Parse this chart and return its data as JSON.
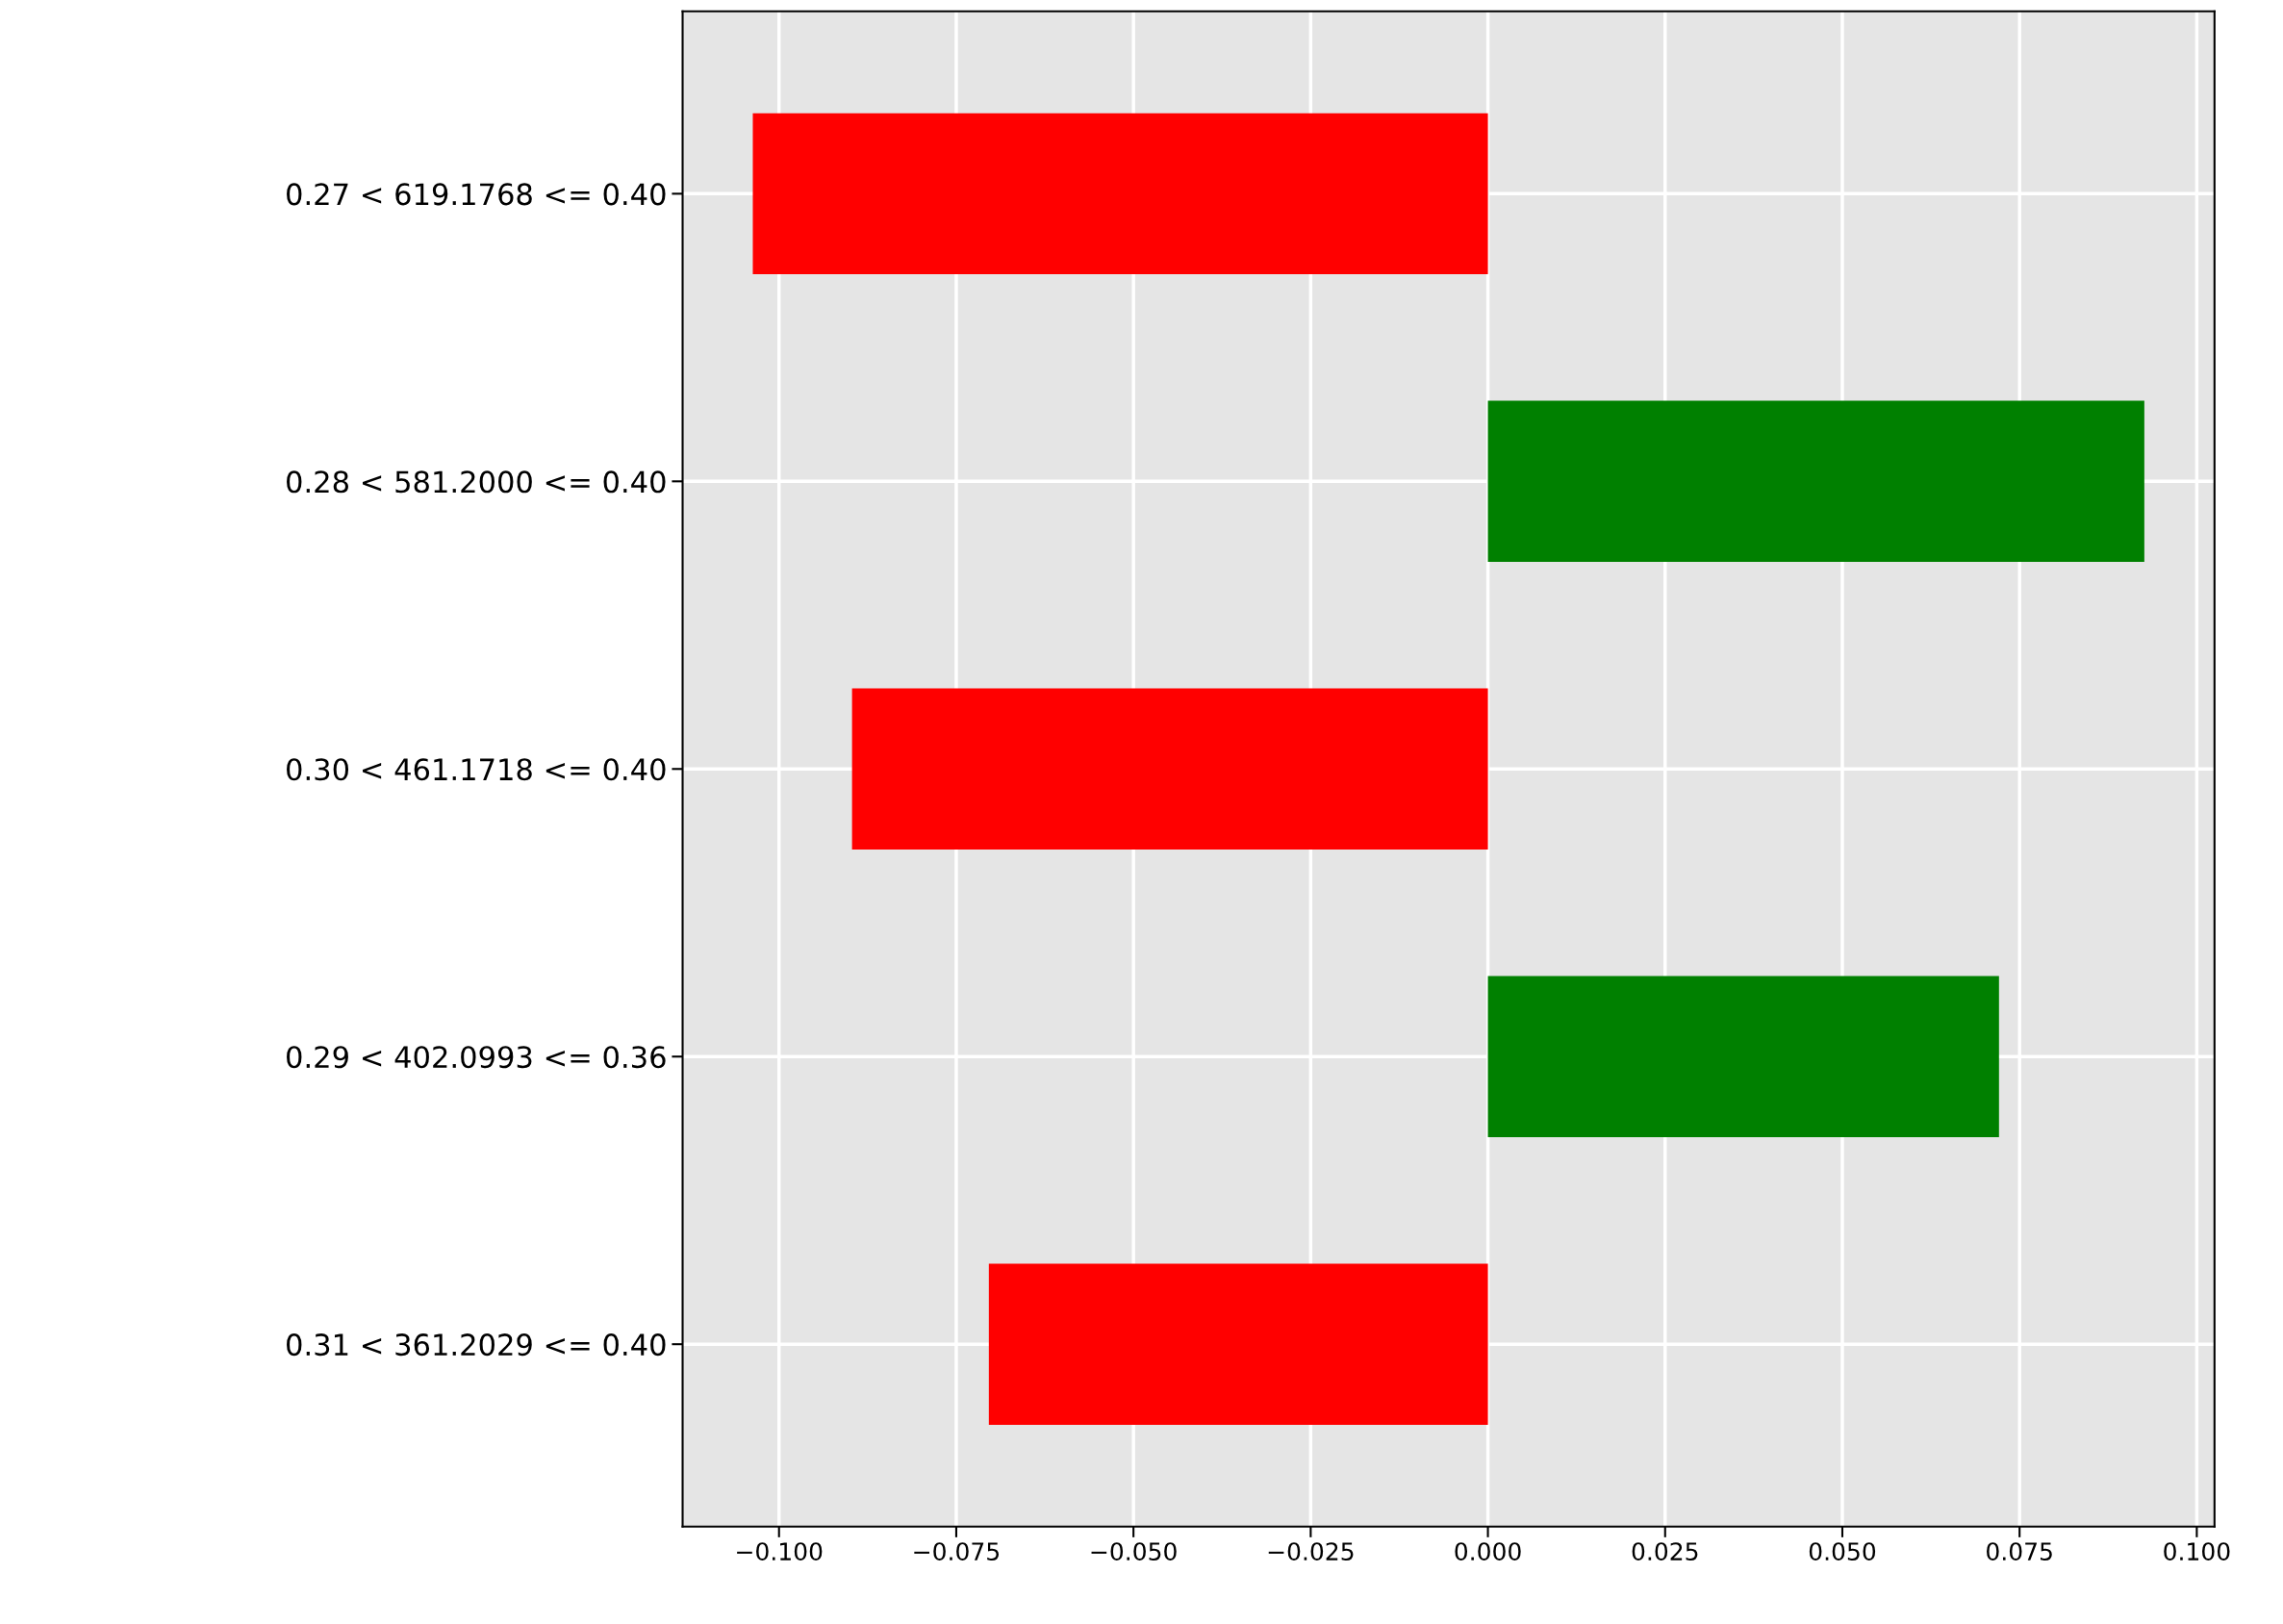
{
  "chart_data": {
    "type": "bar",
    "orientation": "horizontal",
    "categories": [
      "0.27 < 619.1768 <= 0.40",
      "0.28 < 581.2000 <= 0.40",
      "0.30 < 461.1718 <= 0.40",
      "0.29 < 402.0993 <= 0.36",
      "0.31 < 361.2029 <= 0.40"
    ],
    "values": [
      -0.1037,
      0.0926,
      -0.0897,
      0.0721,
      -0.0704
    ],
    "colors": [
      "#ff0000",
      "#008000",
      "#ff0000",
      "#008000",
      "#ff0000"
    ],
    "xlim": [
      -0.1136,
      0.1025
    ],
    "xticks": [
      {
        "value": -0.1,
        "label": "−0.100"
      },
      {
        "value": -0.075,
        "label": "−0.075"
      },
      {
        "value": -0.05,
        "label": "−0.050"
      },
      {
        "value": -0.025,
        "label": "−0.025"
      },
      {
        "value": 0,
        "label": "0.000"
      },
      {
        "value": 0.025,
        "label": "0.025"
      },
      {
        "value": 0.05,
        "label": "0.050"
      },
      {
        "value": 0.075,
        "label": "0.075"
      },
      {
        "value": 0.1,
        "label": "0.100"
      }
    ],
    "grid": true
  }
}
